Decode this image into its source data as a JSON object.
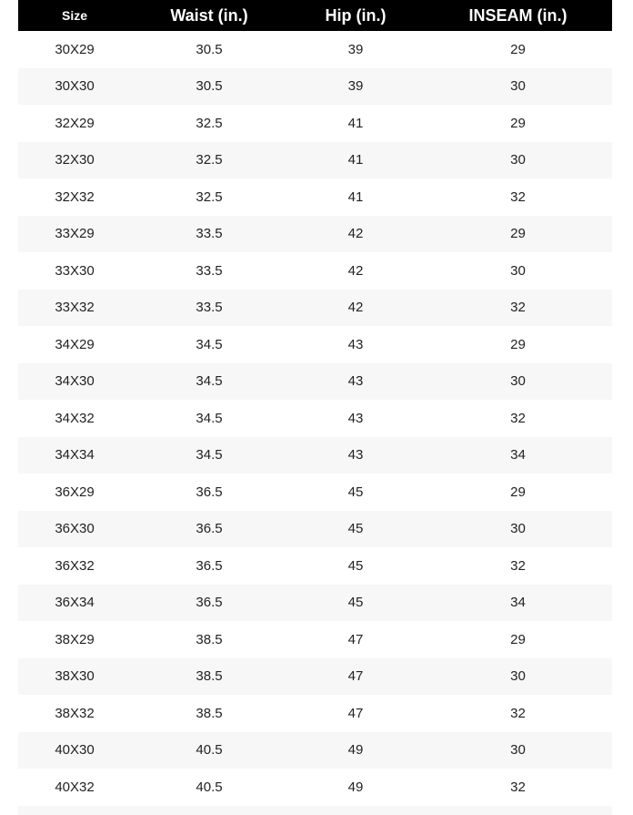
{
  "headers": [
    "Size",
    "Waist (in.)",
    "Hip (in.)",
    "INSEAM (in.)"
  ],
  "rows": [
    [
      "30X29",
      "30.5",
      "39",
      "29"
    ],
    [
      "30X30",
      "30.5",
      "39",
      "30"
    ],
    [
      "32X29",
      "32.5",
      "41",
      "29"
    ],
    [
      "32X30",
      "32.5",
      "41",
      "30"
    ],
    [
      "32X32",
      "32.5",
      "41",
      "32"
    ],
    [
      "33X29",
      "33.5",
      "42",
      "29"
    ],
    [
      "33X30",
      "33.5",
      "42",
      "30"
    ],
    [
      "33X32",
      "33.5",
      "42",
      "32"
    ],
    [
      "34X29",
      "34.5",
      "43",
      "29"
    ],
    [
      "34X30",
      "34.5",
      "43",
      "30"
    ],
    [
      "34X32",
      "34.5",
      "43",
      "32"
    ],
    [
      "34X34",
      "34.5",
      "43",
      "34"
    ],
    [
      "36X29",
      "36.5",
      "45",
      "29"
    ],
    [
      "36X30",
      "36.5",
      "45",
      "30"
    ],
    [
      "36X32",
      "36.5",
      "45",
      "32"
    ],
    [
      "36X34",
      "36.5",
      "45",
      "34"
    ],
    [
      "38X29",
      "38.5",
      "47",
      "29"
    ],
    [
      "38X30",
      "38.5",
      "47",
      "30"
    ],
    [
      "38X32",
      "38.5",
      "47",
      "32"
    ],
    [
      "40X30",
      "40.5",
      "49",
      "30"
    ],
    [
      "40X32",
      "40.5",
      "49",
      "32"
    ]
  ]
}
